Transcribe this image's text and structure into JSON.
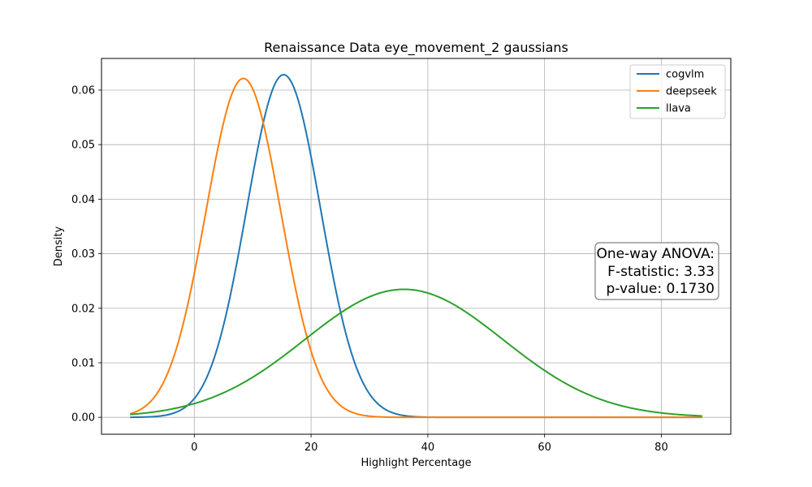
{
  "chart_data": {
    "type": "line",
    "title": "Renaissance Data eye_movement_2 gaussians",
    "xlabel": "Highlight Percentage",
    "ylabel": "Density",
    "xlim": [
      -15.9,
      91.9
    ],
    "ylim": [
      -0.0031,
      0.0658
    ],
    "x_range": [
      -11,
      87
    ],
    "xticks": [
      0,
      20,
      40,
      60,
      80
    ],
    "yticks": [
      0.0,
      0.01,
      0.02,
      0.03,
      0.04,
      0.05,
      0.06
    ],
    "ytick_labels": [
      "0.00",
      "0.01",
      "0.02",
      "0.03",
      "0.04",
      "0.05",
      "0.06"
    ],
    "grid": true,
    "legend_position": "top-right",
    "series": [
      {
        "name": "cogvlm",
        "color": "#1f77b4",
        "mean": 15.3,
        "sd": 6.35
      },
      {
        "name": "deepseek",
        "color": "#ff7f0e",
        "mean": 8.4,
        "sd": 6.42
      },
      {
        "name": "llava",
        "color": "#2ca02c",
        "mean": 35.9,
        "sd": 17.0
      }
    ],
    "annotation": {
      "lines": [
        "One-way ANOVA:",
        "F-statistic: 3.33",
        "p-value: 0.1730"
      ],
      "position": "right-middle"
    }
  }
}
